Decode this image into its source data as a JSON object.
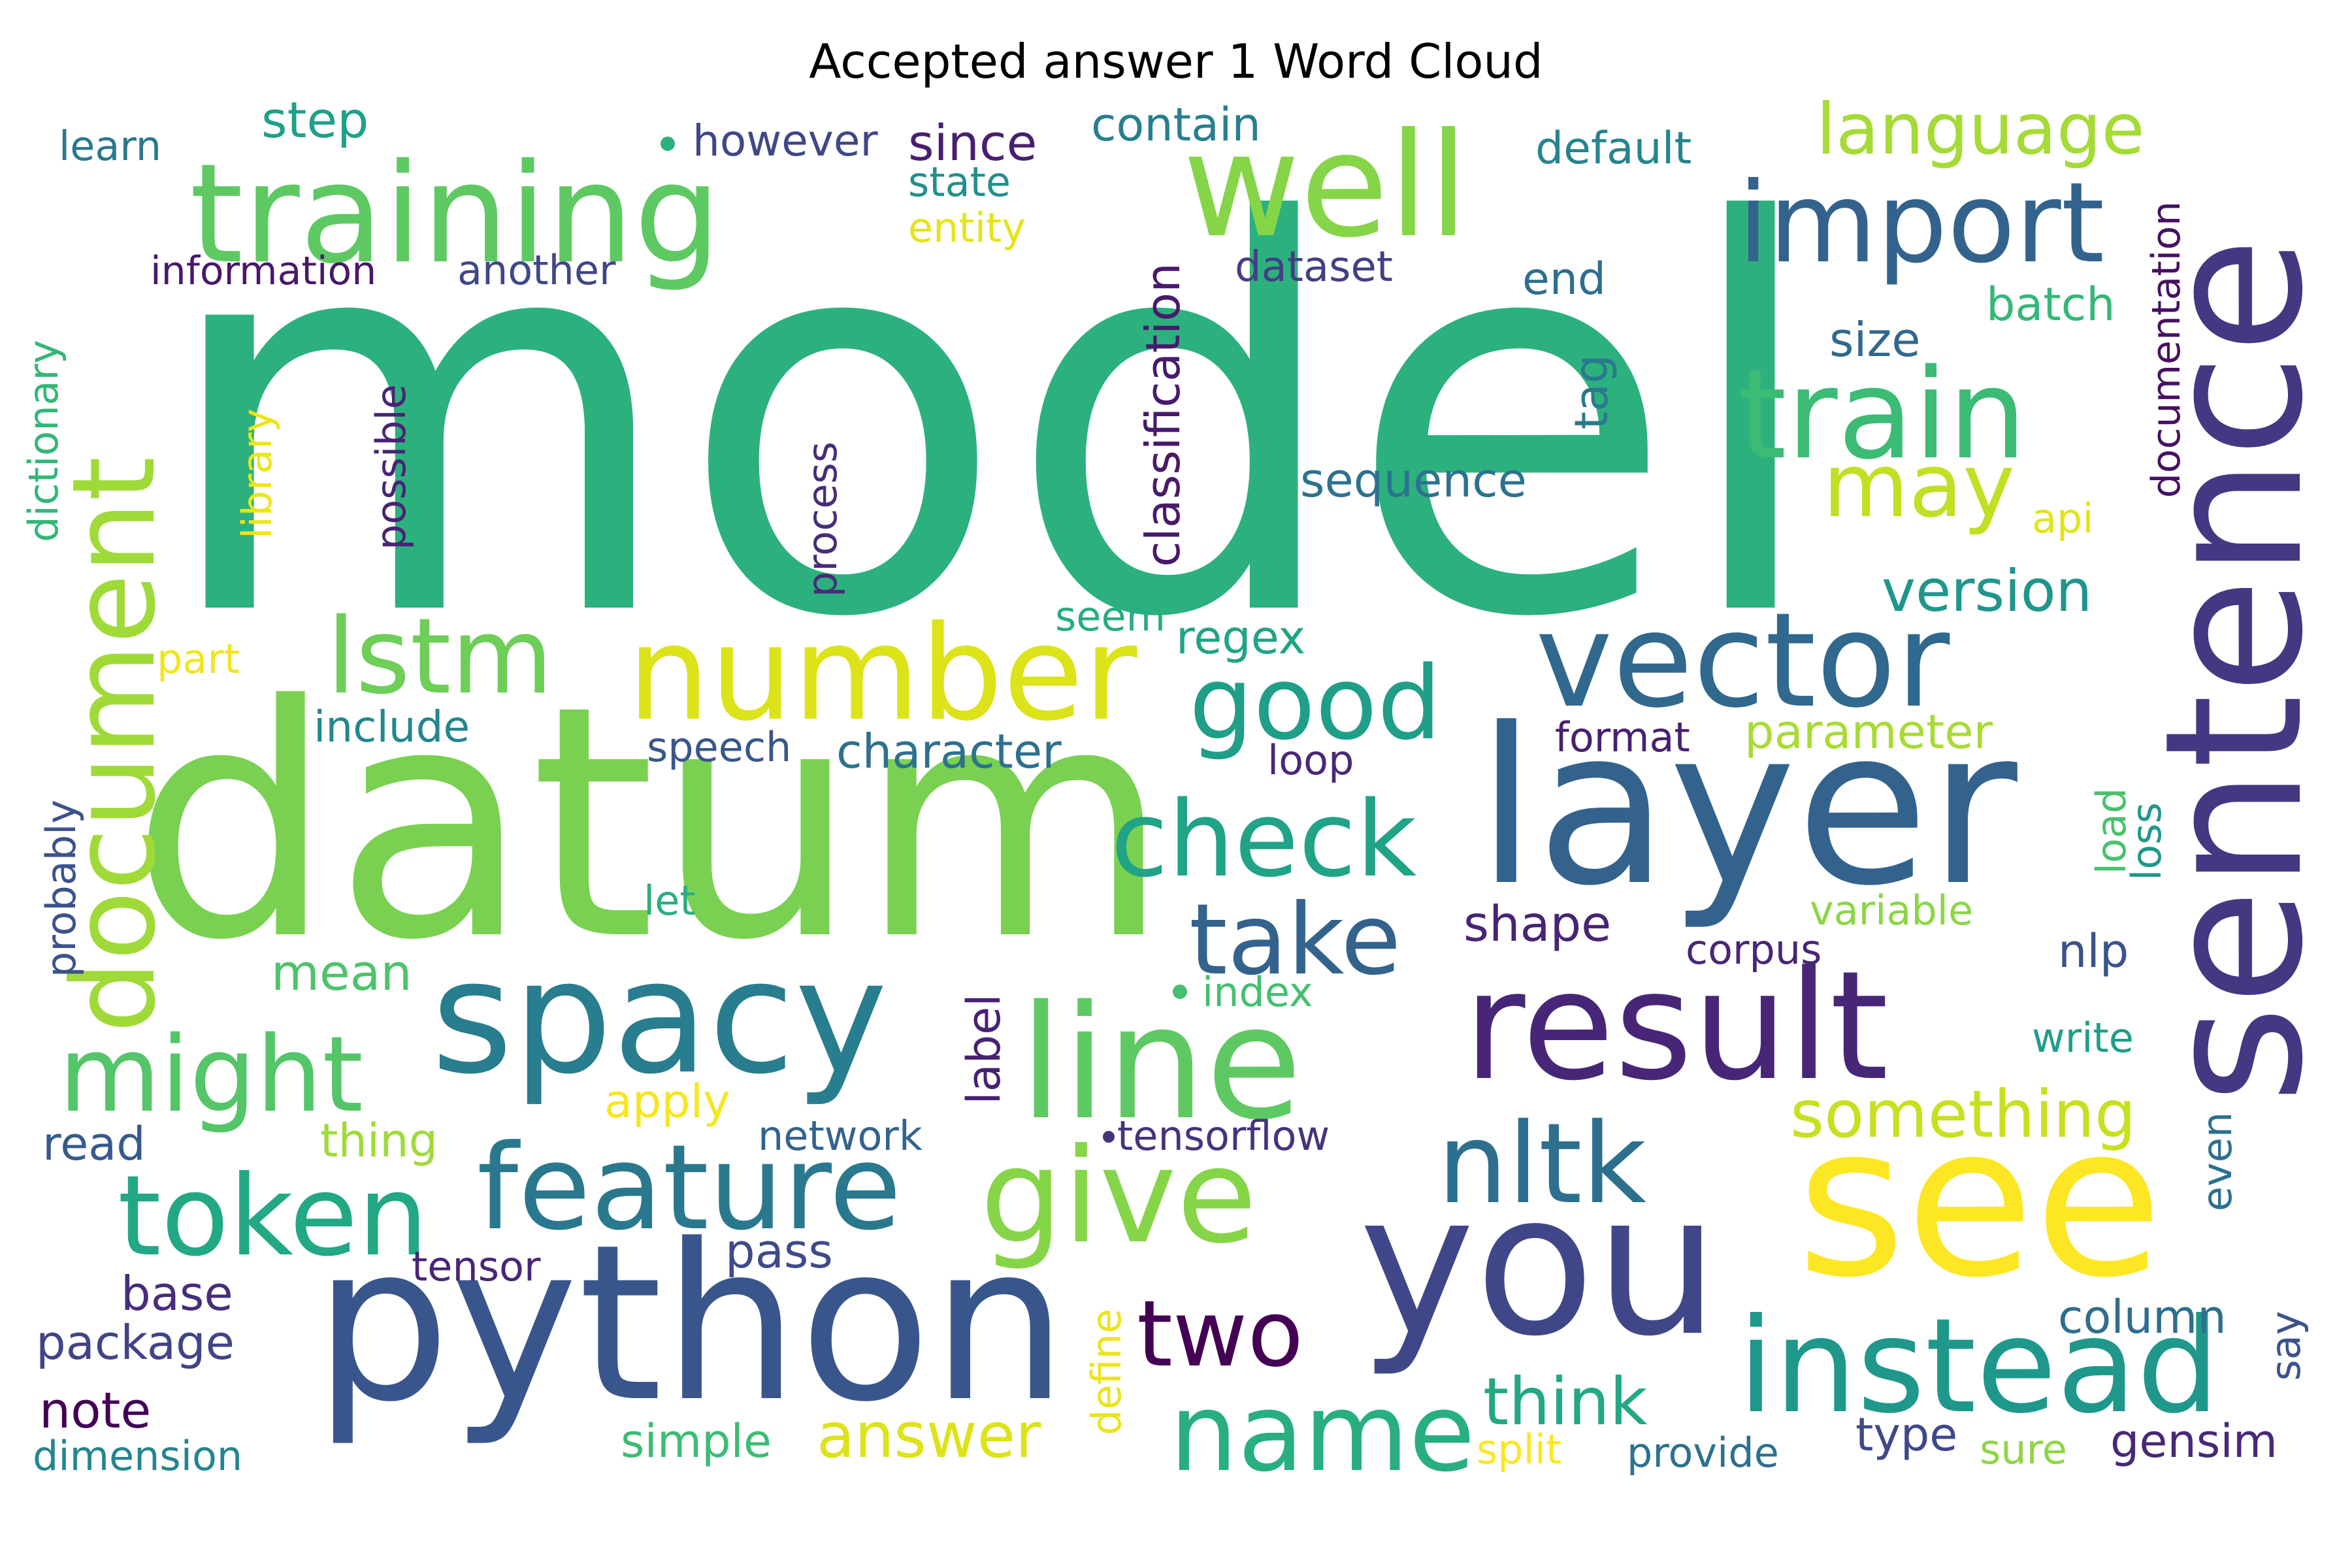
{
  "title": "Accepted answer 1 Word Cloud",
  "words": [
    {
      "text": "model",
      "color": "#2cb17e"
    },
    {
      "text": "datum",
      "color": "#7ad151"
    },
    {
      "text": "sentence",
      "color": "#453781"
    },
    {
      "text": "layer",
      "color": "#33638d"
    },
    {
      "text": "python",
      "color": "#39568c"
    },
    {
      "text": "see",
      "color": "#fde725"
    },
    {
      "text": "you",
      "color": "#404788"
    },
    {
      "text": "training",
      "color": "#5ec962"
    },
    {
      "text": "well",
      "color": "#86d549"
    },
    {
      "text": "spacy",
      "color": "#287d8e"
    },
    {
      "text": "result",
      "color": "#482677"
    },
    {
      "text": "line",
      "color": "#5ec962"
    },
    {
      "text": "vector",
      "color": "#31688e"
    },
    {
      "text": "number",
      "color": "#dce319"
    },
    {
      "text": "instead",
      "color": "#1f988b"
    },
    {
      "text": "train",
      "color": "#3cbb75"
    },
    {
      "text": "import",
      "color": "#33638d"
    },
    {
      "text": "document",
      "color": "#a0da39"
    },
    {
      "text": "give",
      "color": "#86d549"
    },
    {
      "text": "feature",
      "color": "#2a788e"
    },
    {
      "text": "token",
      "color": "#22a884"
    },
    {
      "text": "might",
      "color": "#54c568"
    },
    {
      "text": "lstm",
      "color": "#6ece58"
    },
    {
      "text": "name",
      "color": "#29af7f"
    },
    {
      "text": "nltk",
      "color": "#2d708e"
    },
    {
      "text": "check",
      "color": "#20a386"
    },
    {
      "text": "good",
      "color": "#1f9f88"
    },
    {
      "text": "take",
      "color": "#33638d"
    },
    {
      "text": "two",
      "color": "#440154"
    },
    {
      "text": "may",
      "color": "#c2df23"
    },
    {
      "text": "language",
      "color": "#a5db36"
    },
    {
      "text": "something",
      "color": "#c8e020"
    },
    {
      "text": "think",
      "color": "#22a884"
    },
    {
      "text": "answer",
      "color": "#dde318"
    },
    {
      "text": "version",
      "color": "#1f968b"
    },
    {
      "text": "character",
      "color": "#2d718e"
    },
    {
      "text": "sequence",
      "color": "#2c728e"
    },
    {
      "text": "step",
      "color": "#1fa088"
    },
    {
      "text": "however",
      "color": "#3f4788"
    },
    {
      "text": "since",
      "color": "#481f70"
    },
    {
      "text": "contain",
      "color": "#277f8e"
    },
    {
      "text": "default",
      "color": "#25848e"
    },
    {
      "text": "learn",
      "color": "#2a788e"
    },
    {
      "text": "state",
      "color": "#21908d"
    },
    {
      "text": "entity",
      "color": "#e5e419"
    },
    {
      "text": "information",
      "color": "#48186a"
    },
    {
      "text": "another",
      "color": "#3f4788"
    },
    {
      "text": "dataset",
      "color": "#433e85"
    },
    {
      "text": "end",
      "color": "#2e6e8e"
    },
    {
      "text": "batch",
      "color": "#35b779"
    },
    {
      "text": "size",
      "color": "#31688e"
    },
    {
      "text": "classification",
      "color": "#481a6c"
    },
    {
      "text": "documentation",
      "color": "#471063"
    },
    {
      "text": "tag",
      "color": "#2a788e"
    },
    {
      "text": "api",
      "color": "#e1e419"
    },
    {
      "text": "dictionary",
      "color": "#34b679"
    },
    {
      "text": "library",
      "color": "#ece51b"
    },
    {
      "text": "possible",
      "color": "#482475"
    },
    {
      "text": "process",
      "color": "#472c7a"
    },
    {
      "text": "seem",
      "color": "#26ad81"
    },
    {
      "text": "regex",
      "color": "#20a486"
    },
    {
      "text": "part",
      "color": "#f1e51d"
    },
    {
      "text": "include",
      "color": "#24868e"
    },
    {
      "text": "speech",
      "color": "#39568c"
    },
    {
      "text": "loop",
      "color": "#482878"
    },
    {
      "text": "format",
      "color": "#482071"
    },
    {
      "text": "parameter",
      "color": "#a8db34"
    },
    {
      "text": "probably",
      "color": "#3b528b"
    },
    {
      "text": "let",
      "color": "#29af7f"
    },
    {
      "text": "shape",
      "color": "#482475"
    },
    {
      "text": "corpus",
      "color": "#482677"
    },
    {
      "text": "variable",
      "color": "#8bd646"
    },
    {
      "text": "load",
      "color": "#4ac16d"
    },
    {
      "text": "loss",
      "color": "#1f988b"
    },
    {
      "text": "nlp",
      "color": "#3b528b"
    },
    {
      "text": "mean",
      "color": "#4ec36b"
    },
    {
      "text": "index",
      "color": "#44bf70"
    },
    {
      "text": "label",
      "color": "#482173"
    },
    {
      "text": "write",
      "color": "#1f9e89"
    },
    {
      "text": "apply",
      "color": "#f6e620"
    },
    {
      "text": "read",
      "color": "#38598c"
    },
    {
      "text": "thing",
      "color": "#9fda3a"
    },
    {
      "text": "network",
      "color": "#33638d"
    },
    {
      "text": "tensorflow",
      "color": "#46337e"
    },
    {
      "text": "even",
      "color": "#2d708e"
    },
    {
      "text": "tensor",
      "color": "#482677"
    },
    {
      "text": "pass",
      "color": "#3e4a89"
    },
    {
      "text": "base",
      "color": "#472d7b"
    },
    {
      "text": "package",
      "color": "#414487"
    },
    {
      "text": "define",
      "color": "#eae51a"
    },
    {
      "text": "column",
      "color": "#2e6e8e"
    },
    {
      "text": "say",
      "color": "#3b528b"
    },
    {
      "text": "note",
      "color": "#440154"
    },
    {
      "text": "dimension",
      "color": "#25858e"
    },
    {
      "text": "simple",
      "color": "#3dbc74"
    },
    {
      "text": "split",
      "color": "#fbe723"
    },
    {
      "text": "provide",
      "color": "#2c728e"
    },
    {
      "text": "type",
      "color": "#3e4989"
    },
    {
      "text": "sure",
      "color": "#8ed645"
    },
    {
      "text": "gensim",
      "color": "#482878"
    }
  ]
}
